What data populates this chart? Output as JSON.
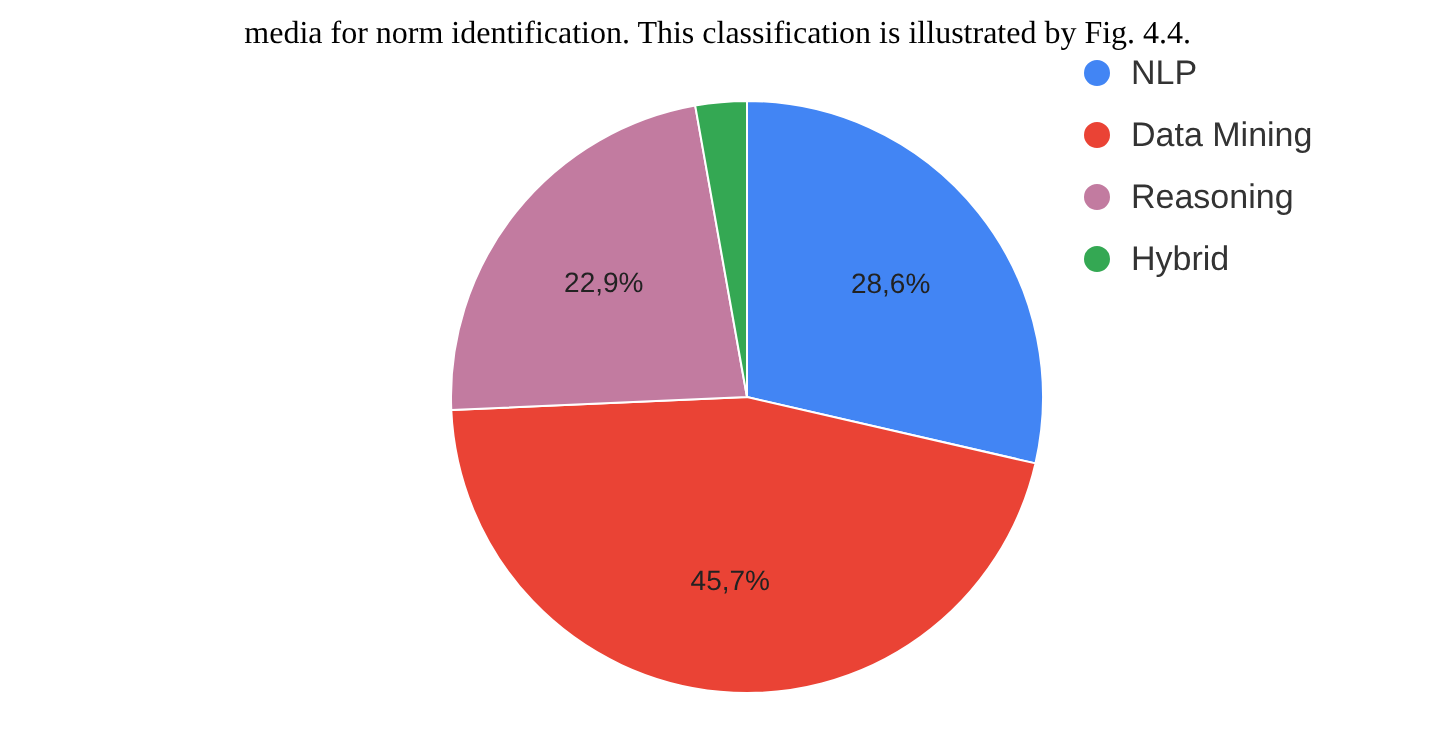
{
  "chart_data": {
    "type": "pie",
    "categories": [
      "NLP",
      "Data Mining",
      "Reasoning",
      "Hybrid"
    ],
    "values": [
      28.6,
      45.7,
      22.9,
      2.8
    ],
    "colors": [
      "#4285f4",
      "#ea4335",
      "#c27ba0",
      "#34a853"
    ],
    "value_labels": [
      "28,6%",
      "45,7%",
      "22,9%",
      null
    ],
    "legend": "top right",
    "annotations": [
      "media for norm identification. This classification is illustrated by Fig. 4.4."
    ]
  }
}
